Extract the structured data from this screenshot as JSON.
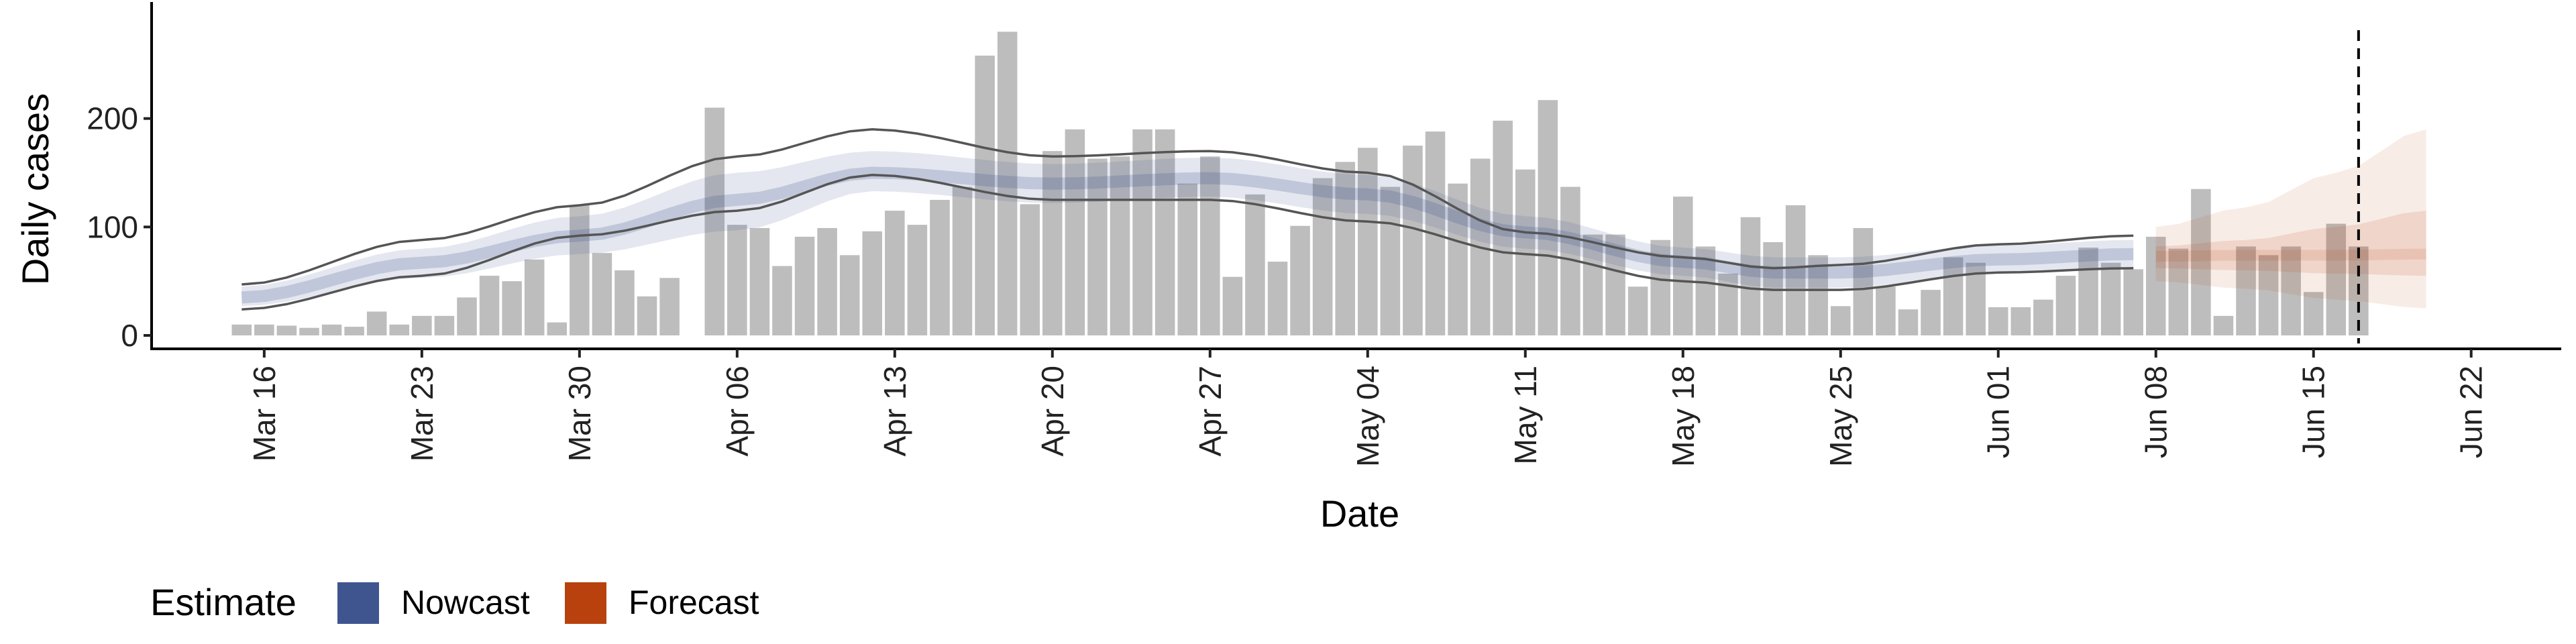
{
  "chart_data": {
    "type": "bar",
    "title": "",
    "xlabel": "Date",
    "ylabel": "Daily cases",
    "ylim": [
      0,
      300
    ],
    "xlim": [
      "2020-03-11",
      "2020-06-26"
    ],
    "y_ticks": [
      0,
      100,
      200
    ],
    "x_ticks": [
      {
        "date": "2020-03-16",
        "label": "Mar 16"
      },
      {
        "date": "2020-03-23",
        "label": "Mar 23"
      },
      {
        "date": "2020-03-30",
        "label": "Mar 30"
      },
      {
        "date": "2020-04-06",
        "label": "Apr 06"
      },
      {
        "date": "2020-04-13",
        "label": "Apr 13"
      },
      {
        "date": "2020-04-20",
        "label": "Apr 20"
      },
      {
        "date": "2020-04-27",
        "label": "Apr 27"
      },
      {
        "date": "2020-05-04",
        "label": "May 04"
      },
      {
        "date": "2020-05-11",
        "label": "May 11"
      },
      {
        "date": "2020-05-18",
        "label": "May 18"
      },
      {
        "date": "2020-05-25",
        "label": "May 25"
      },
      {
        "date": "2020-06-01",
        "label": "Jun 01"
      },
      {
        "date": "2020-06-08",
        "label": "Jun 08"
      },
      {
        "date": "2020-06-15",
        "label": "Jun 15"
      },
      {
        "date": "2020-06-22",
        "label": "Jun 22"
      }
    ],
    "vline_date": "2020-06-17",
    "grid": false,
    "bars": {
      "start_date": "2020-03-15",
      "color": "#bdbdbd",
      "values": [
        10,
        10,
        9,
        7,
        10,
        8,
        22,
        10,
        18,
        18,
        35,
        55,
        50,
        70,
        12,
        120,
        76,
        60,
        36,
        53,
        null,
        210,
        102,
        99,
        64,
        91,
        99,
        74,
        96,
        115,
        102,
        125,
        137,
        258,
        280,
        121,
        170,
        190,
        163,
        165,
        190,
        190,
        140,
        165,
        54,
        130,
        68,
        101,
        145,
        160,
        173,
        137,
        175,
        188,
        140,
        163,
        198,
        153,
        217,
        137,
        93,
        93,
        45,
        88,
        128,
        82,
        57,
        109,
        86,
        120,
        74,
        27,
        99,
        45,
        24,
        42,
        72,
        67,
        26,
        26,
        33,
        55,
        81,
        67,
        61,
        91,
        80,
        135,
        18,
        82,
        74,
        82,
        40,
        103,
        82
      ]
    },
    "series": [
      {
        "name": "Nowcast",
        "color": "#3f5590",
        "start_date": "2020-03-15",
        "end_date": "2020-06-07",
        "median_key_dates": [
          "2020-03-15",
          "2020-03-23",
          "2020-03-30",
          "2020-04-06",
          "2020-04-12",
          "2020-04-20",
          "2020-04-27",
          "2020-05-04",
          "2020-05-11",
          "2020-05-18",
          "2020-05-22",
          "2020-05-25",
          "2020-06-01",
          "2020-06-07"
        ],
        "median": [
          35,
          67,
          92,
          125,
          150,
          140,
          145,
          130,
          95,
          68,
          58,
          58,
          70,
          75
        ],
        "lower_90": [
          27,
          53,
          75,
          97,
          133,
          122,
          128,
          112,
          80,
          55,
          44,
          44,
          57,
          62
        ],
        "upper_90": [
          45,
          80,
          110,
          150,
          170,
          158,
          164,
          148,
          110,
          81,
          72,
          72,
          83,
          88
        ],
        "outline_upper": [
          47,
          88,
          120,
          165,
          190,
          165,
          170,
          150,
          95,
          72,
          62,
          65,
          84,
          92
        ],
        "outline_lower": [
          24,
          55,
          92,
          115,
          148,
          125,
          125,
          105,
          75,
          50,
          42,
          42,
          58,
          62
        ]
      },
      {
        "name": "Forecast",
        "color": "#b8410d",
        "start_date": "2020-06-08",
        "end_date": "2020-06-20",
        "median_key_dates": [
          "2020-06-08",
          "2020-06-12",
          "2020-06-16",
          "2020-06-20"
        ],
        "median": [
          73,
          74,
          74,
          75
        ],
        "lower_50": [
          62,
          60,
          57,
          55
        ],
        "upper_50": [
          82,
          88,
          100,
          115
        ],
        "lower_90": [
          50,
          43,
          33,
          25
        ],
        "upper_90": [
          100,
          118,
          150,
          190
        ]
      }
    ],
    "legend": {
      "title": "Estimate",
      "position": "bottom-left",
      "entries": [
        {
          "label": "Nowcast",
          "color": "#3f5590"
        },
        {
          "label": "Forecast",
          "color": "#b8410d"
        }
      ]
    }
  }
}
